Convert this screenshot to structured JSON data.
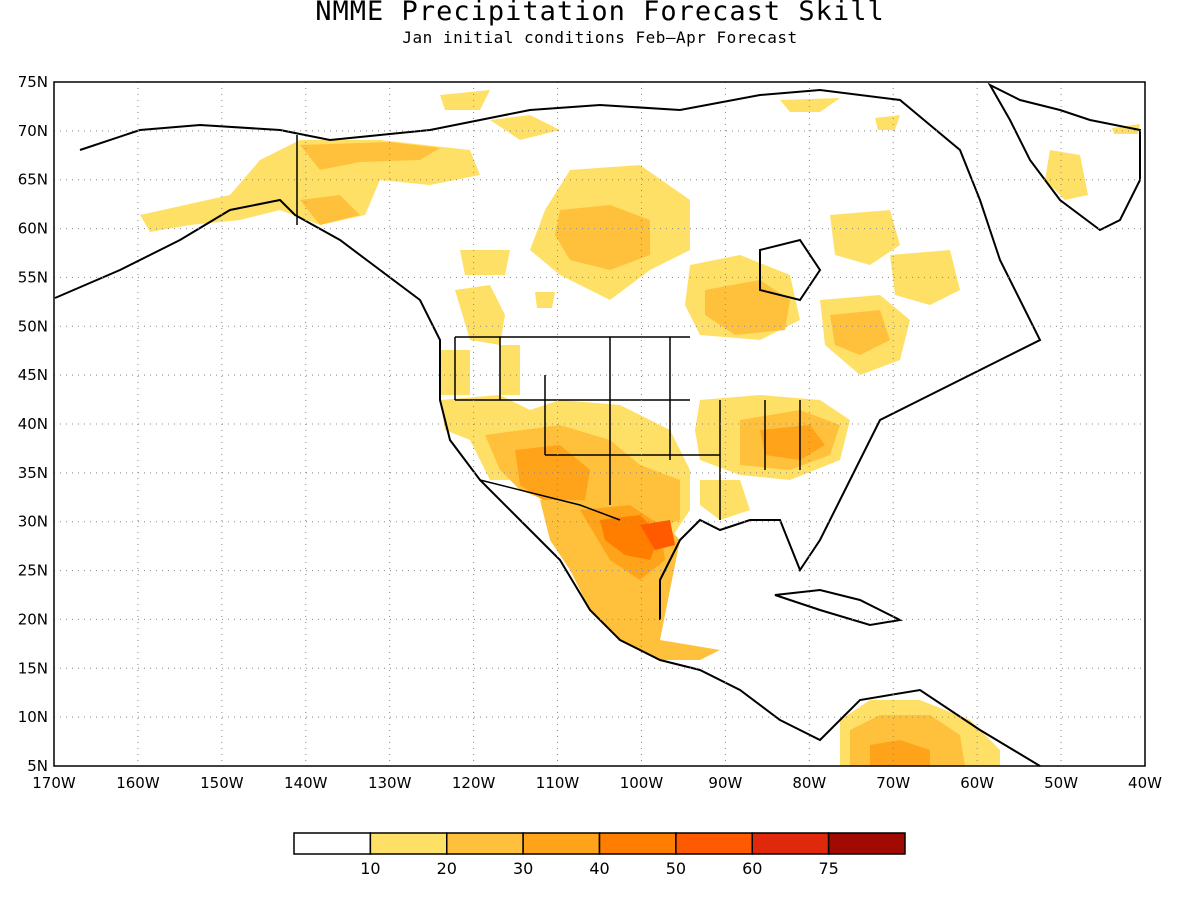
{
  "title": "NMME Precipitation Forecast Skill",
  "subtitle": "Jan initial conditions  Feb—Apr Forecast",
  "map": {
    "lon_range": [
      -170,
      -40
    ],
    "lat_range": [
      5,
      75
    ],
    "lon_labels": [
      "170W",
      "160W",
      "150W",
      "140W",
      "130W",
      "120W",
      "110W",
      "100W",
      "90W",
      "80W",
      "70W",
      "60W",
      "50W",
      "40W"
    ],
    "lat_labels": [
      "75N",
      "70N",
      "65N",
      "60N",
      "55N",
      "50N",
      "45N",
      "40N",
      "35N",
      "30N",
      "25N",
      "20N",
      "15N",
      "10N",
      "5N"
    ],
    "gridlines": "dotted"
  },
  "colorbar": {
    "labels": [
      "10",
      "20",
      "30",
      "40",
      "50",
      "60",
      "75"
    ],
    "colors": [
      "#ffffff",
      "#ffe066",
      "#ffc13b",
      "#ffa31a",
      "#ff7e00",
      "#ff5a00",
      "#e0290a",
      "#a00a00"
    ]
  }
}
